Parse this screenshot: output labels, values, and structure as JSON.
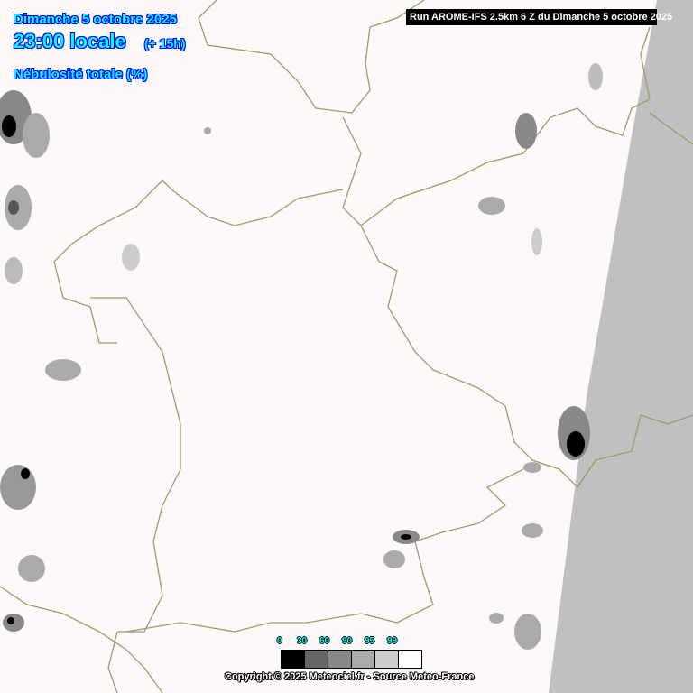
{
  "header": {
    "date": "Dimanche 5 octobre 2025",
    "time": "23:00 locale",
    "offset": "(+ 15h)",
    "parameter": "Nébulosité totale (%)"
  },
  "run_banner": "Run AROME-IFS 2.5km 6 Z du Dimanche 5 octobre 2025",
  "legend": {
    "ticks": [
      "0",
      "30",
      "60",
      "90",
      "95",
      "99"
    ],
    "colors": [
      "#000000",
      "#666666",
      "#888888",
      "#aaaaaa",
      "#cccccc",
      "#ffffff"
    ]
  },
  "copyright": "Copyright © 2025 Meteociel.fr - Source Meteo-France",
  "colors": {
    "background": "#fdf9f8",
    "no_data": "#c0c0c0",
    "borders": "#9c9c6a",
    "label_text": "#00ffff",
    "label_outline": "#0000ff"
  }
}
